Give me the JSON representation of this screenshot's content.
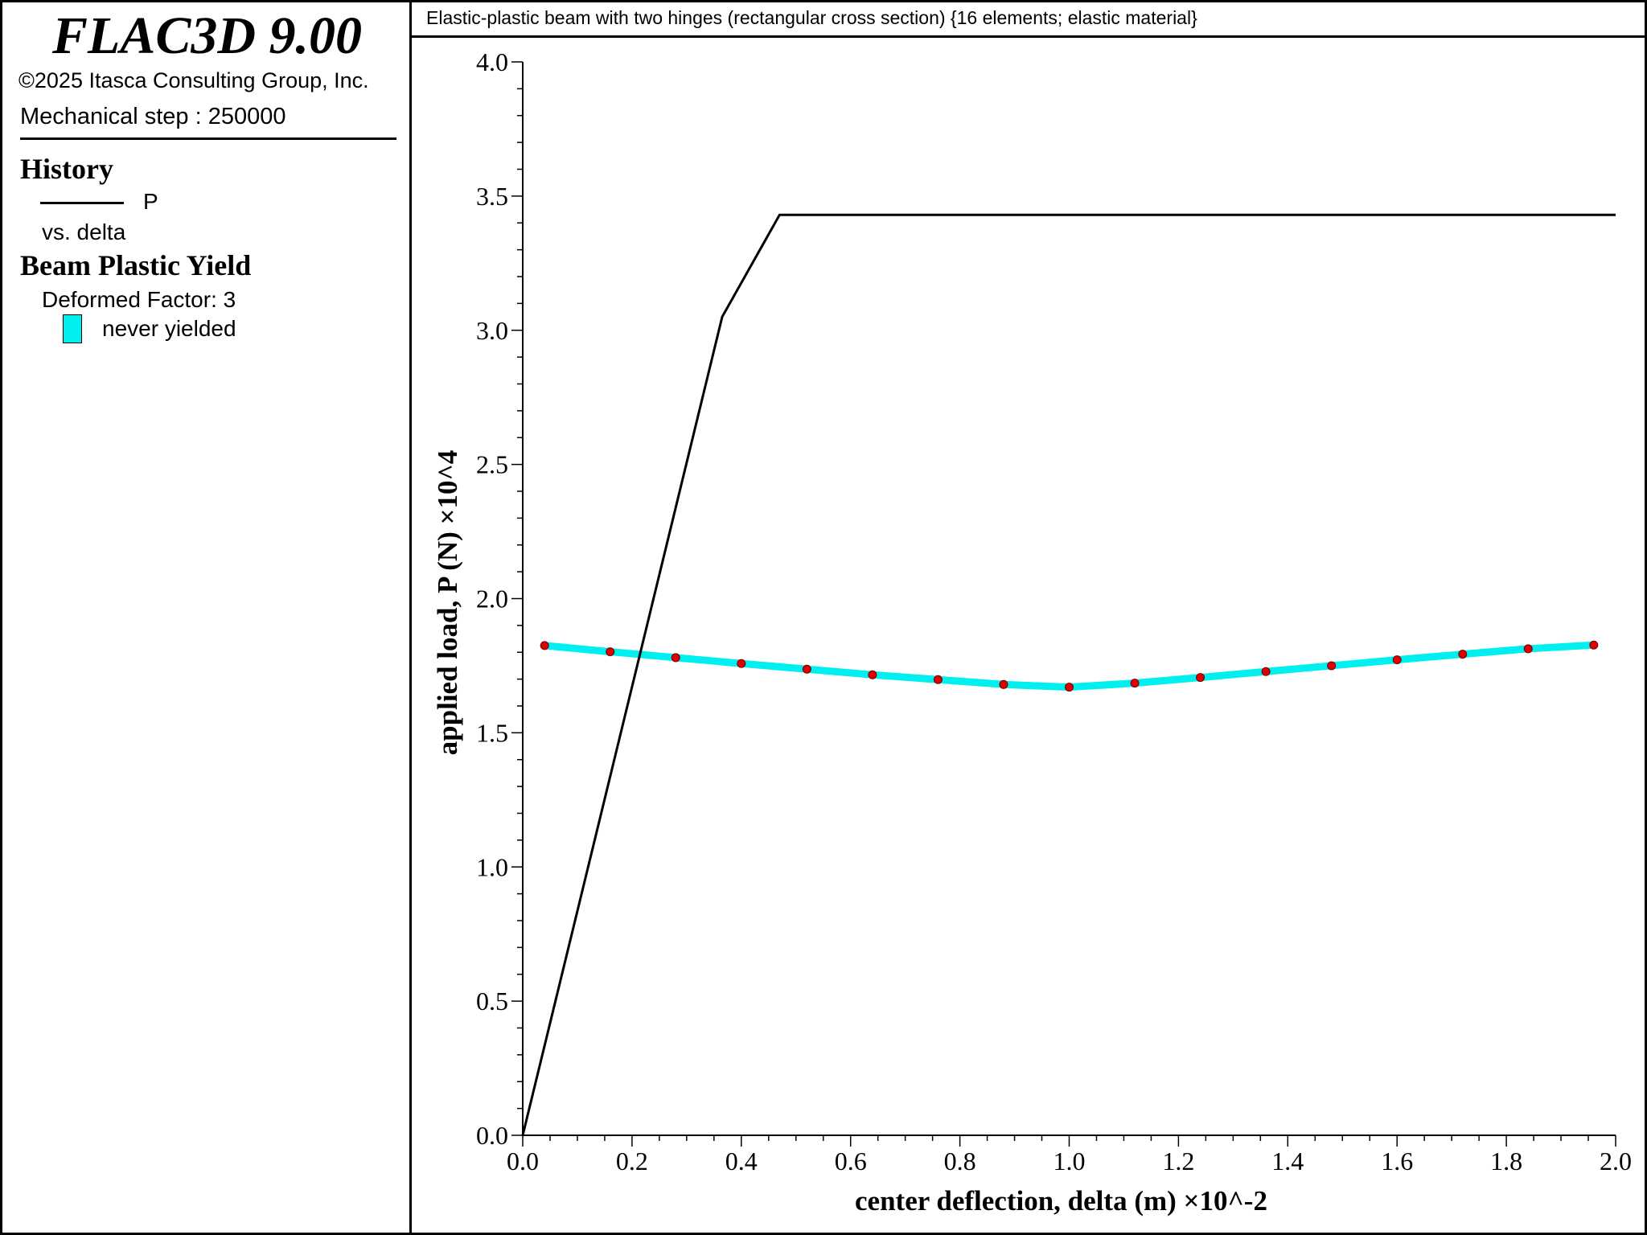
{
  "app": {
    "title": "FLAC3D 9.00",
    "copyright": "©2025 Itasca Consulting Group, Inc.",
    "step_text": "Mechanical step : 250000"
  },
  "legend": {
    "history_title": "History",
    "history_series": "P",
    "history_vs": "vs. delta",
    "yield_title": "Beam Plastic Yield",
    "deformed_factor": "Deformed Factor: 3",
    "yield_label": "never yielded"
  },
  "colors": {
    "history_line": "#000000",
    "beam": "#00f0f0",
    "node": "#e00000",
    "frame": "#000000"
  },
  "chart_data": {
    "type": "line",
    "title": "Elastic-plastic beam with two hinges (rectangular cross section) {16 elements; elastic material}",
    "xlabel": "center deflection, delta (m) ×10^-2",
    "ylabel": "applied load, P (N) ×10^4",
    "xlim": [
      0,
      2.0
    ],
    "ylim": [
      0,
      4.0
    ],
    "x_ticks": [
      "0.0",
      "0.2",
      "0.4",
      "0.6",
      "0.8",
      "1.0",
      "1.2",
      "1.4",
      "1.6",
      "1.8",
      "2.0"
    ],
    "y_ticks": [
      "0.0",
      "0.5",
      "1.0",
      "1.5",
      "2.0",
      "2.5",
      "3.0",
      "3.5",
      "4.0"
    ],
    "grid": false,
    "series": [
      {
        "name": "P",
        "style": "line",
        "x": [
          0.0,
          0.365,
          0.47,
          2.0
        ],
        "y": [
          0.0,
          3.05,
          3.43,
          3.43
        ]
      },
      {
        "name": "never yielded",
        "style": "beam-with-nodes",
        "x": [
          0.04,
          0.16,
          0.28,
          0.4,
          0.52,
          0.64,
          0.76,
          0.88,
          1.0,
          1.12,
          1.24,
          1.36,
          1.48,
          1.6,
          1.72,
          1.84,
          1.96
        ],
        "y": [
          1.825,
          1.802,
          1.78,
          1.758,
          1.737,
          1.716,
          1.698,
          1.68,
          1.67,
          1.685,
          1.706,
          1.728,
          1.75,
          1.772,
          1.793,
          1.813,
          1.827
        ]
      }
    ]
  }
}
